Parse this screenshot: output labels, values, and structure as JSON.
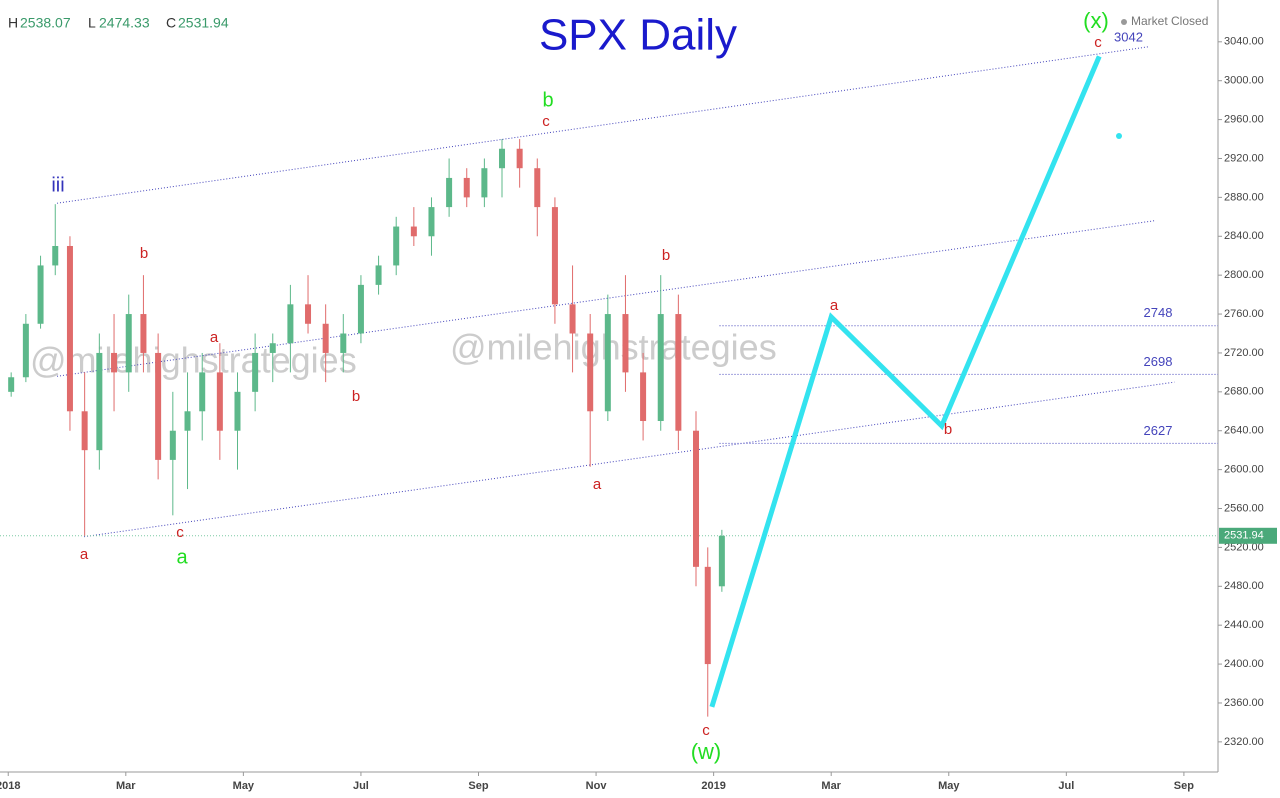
{
  "chart_data": {
    "type": "candlestick",
    "title": "SPX Daily",
    "status": "Market Closed",
    "watermark": "@milehighstrategies",
    "ohlc_labels": [
      "H",
      "L",
      "C"
    ],
    "up_color": "#5cb88a",
    "down_color": "#e06b6b",
    "xlim": [
      -0.14,
      20.58
    ],
    "xticks": [
      {
        "value": 0,
        "label": "2018"
      },
      {
        "value": 2,
        "label": "Mar"
      },
      {
        "value": 4,
        "label": "May"
      },
      {
        "value": 6,
        "label": "Jul"
      },
      {
        "value": 8,
        "label": "Sep"
      },
      {
        "value": 10,
        "label": "Nov"
      },
      {
        "value": 12,
        "label": "2019"
      },
      {
        "value": 14,
        "label": "Mar"
      },
      {
        "value": 16,
        "label": "May"
      },
      {
        "value": 18,
        "label": "Jul"
      },
      {
        "value": 20,
        "label": "Sep"
      }
    ],
    "ylim": [
      2289,
      3083
    ],
    "yticks": [
      {
        "value": 2320,
        "label": "2320.00"
      },
      {
        "value": 2360,
        "label": "2360.00"
      },
      {
        "value": 2400,
        "label": "2400.00"
      },
      {
        "value": 2440,
        "label": "2440.00"
      },
      {
        "value": 2480,
        "label": "2480.00"
      },
      {
        "value": 2520,
        "label": "2520.00"
      },
      {
        "value": 2560,
        "label": "2560.00"
      },
      {
        "value": 2600,
        "label": "2600.00"
      },
      {
        "value": 2640,
        "label": "2640.00"
      },
      {
        "value": 2680,
        "label": "2680.00"
      },
      {
        "value": 2720,
        "label": "2720.00"
      },
      {
        "value": 2760,
        "label": "2760.00"
      },
      {
        "value": 2800,
        "label": "2800.00"
      },
      {
        "value": 2840,
        "label": "2840.00"
      },
      {
        "value": 2880,
        "label": "2880.00"
      },
      {
        "value": 2920,
        "label": "2920.00"
      },
      {
        "value": 2960,
        "label": "2960.00"
      },
      {
        "value": 3000,
        "label": "3000.00"
      },
      {
        "value": 3040,
        "label": "3040.00"
      }
    ],
    "candles": {
      "x": [
        0.05,
        0.3,
        0.55,
        0.8,
        1.05,
        1.3,
        1.55,
        1.8,
        2.05,
        2.3,
        2.55,
        2.8,
        3.05,
        3.3,
        3.6,
        3.9,
        4.2,
        4.5,
        4.8,
        5.1,
        5.4,
        5.7,
        6.0,
        6.3,
        6.6,
        6.9,
        7.2,
        7.5,
        7.8,
        8.1,
        8.4,
        8.7,
        9.0,
        9.3,
        9.6,
        9.9,
        10.2,
        10.5,
        10.8,
        11.1,
        11.4,
        11.7,
        11.9,
        12.14
      ],
      "open": [
        2680,
        2695,
        2750,
        2810,
        2830,
        2660,
        2620,
        2720,
        2700,
        2760,
        2720,
        2610,
        2640,
        2660,
        2700,
        2640,
        2680,
        2720,
        2730,
        2770,
        2750,
        2720,
        2740,
        2790,
        2810,
        2850,
        2840,
        2870,
        2900,
        2880,
        2910,
        2930,
        2910,
        2870,
        2770,
        2740,
        2660,
        2760,
        2700,
        2650,
        2760,
        2640,
        2500,
        2480
      ],
      "high": [
        2700,
        2760,
        2820,
        2873,
        2840,
        2700,
        2740,
        2760,
        2780,
        2800,
        2740,
        2680,
        2700,
        2720,
        2730,
        2700,
        2740,
        2740,
        2790,
        2800,
        2770,
        2760,
        2800,
        2820,
        2860,
        2870,
        2880,
        2920,
        2910,
        2920,
        2940,
        2940,
        2920,
        2880,
        2810,
        2760,
        2780,
        2800,
        2720,
        2800,
        2780,
        2660,
        2520,
        2538.07
      ],
      "low": [
        2675,
        2690,
        2745,
        2800,
        2640,
        2532,
        2600,
        2660,
        2680,
        2700,
        2590,
        2553,
        2580,
        2630,
        2610,
        2600,
        2660,
        2690,
        2700,
        2740,
        2690,
        2700,
        2730,
        2780,
        2800,
        2830,
        2820,
        2860,
        2870,
        2870,
        2880,
        2890,
        2840,
        2750,
        2700,
        2603,
        2650,
        2680,
        2630,
        2640,
        2620,
        2480,
        2346,
        2474.33
      ],
      "close": [
        2695,
        2750,
        2810,
        2830,
        2660,
        2620,
        2720,
        2700,
        2760,
        2720,
        2610,
        2640,
        2660,
        2700,
        2640,
        2680,
        2720,
        2730,
        2770,
        2750,
        2720,
        2740,
        2790,
        2810,
        2850,
        2840,
        2870,
        2900,
        2880,
        2910,
        2930,
        2910,
        2870,
        2770,
        2740,
        2660,
        2760,
        2700,
        2650,
        2760,
        2640,
        2500,
        2400,
        2531.94
      ]
    },
    "projection": {
      "x": [
        11.97,
        14.0,
        15.88,
        18.56
      ],
      "values": [
        2356,
        2757,
        2645,
        3025
      ],
      "color": "#33e3ef"
    },
    "channels": [
      {
        "x": [
          0.83,
          19.41
        ],
        "values": [
          2874,
          3035
        ]
      },
      {
        "x": [
          0.83,
          19.5
        ],
        "values": [
          2696,
          2856
        ]
      },
      {
        "x": [
          1.29,
          19.84
        ],
        "values": [
          2531,
          2690
        ]
      }
    ],
    "channel_color": "#4444bb",
    "levels": [
      {
        "value": 2748,
        "label": "2748"
      },
      {
        "value": 2698,
        "label": "2698"
      },
      {
        "value": 2627,
        "label": "2627"
      }
    ],
    "level_start": 12.1,
    "target_label": "3042",
    "waves": [
      {
        "text": "iii",
        "color": "#3333bb"
      },
      {
        "text": "a",
        "color": "#cc2222"
      },
      {
        "text": "b",
        "color": "#cc2222"
      },
      {
        "text": "c",
        "color": "#cc2222"
      },
      {
        "text": "a",
        "color": "#22dd22"
      },
      {
        "text": "a",
        "color": "#cc2222"
      },
      {
        "text": "b",
        "color": "#cc2222"
      },
      {
        "text": "b",
        "color": "#22dd22"
      },
      {
        "text": "c",
        "color": "#cc2222"
      },
      {
        "text": "a",
        "color": "#cc2222"
      },
      {
        "text": "b",
        "color": "#cc2222"
      },
      {
        "text": "c",
        "color": "#cc2222"
      },
      {
        "text": "(w)",
        "color": "#22dd22"
      },
      {
        "text": "a",
        "color": "#cc2222"
      },
      {
        "text": "b",
        "color": "#cc2222"
      },
      {
        "text": "c",
        "color": "#cc2222"
      },
      {
        "text": "(x)",
        "color": "#22dd22"
      }
    ]
  }
}
